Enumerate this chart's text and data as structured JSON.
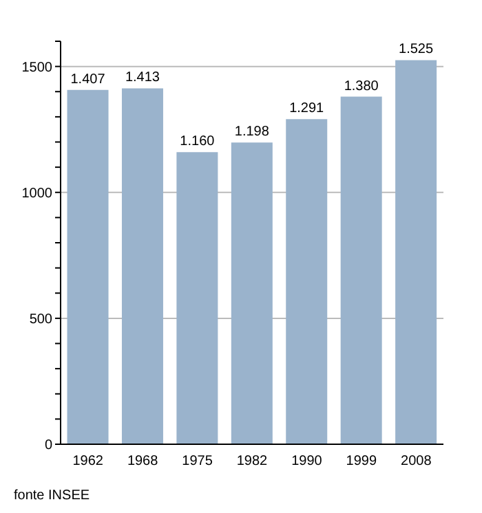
{
  "chart_data": {
    "type": "bar",
    "categories": [
      "1962",
      "1968",
      "1975",
      "1982",
      "1990",
      "1999",
      "2008"
    ],
    "values": [
      1407,
      1413,
      1160,
      1198,
      1291,
      1380,
      1525
    ],
    "value_labels": [
      "1.407",
      "1.413",
      "1.160",
      "1.198",
      "1.291",
      "1.380",
      "1.525"
    ],
    "color": "#9ab3cc",
    "ylim": [
      0,
      1600
    ],
    "yticks": [
      0,
      {
        "value": 100,
        "label": null
      },
      {
        "value": 200,
        "label": null
      },
      {
        "value": 300,
        "label": null
      },
      {
        "value": 400,
        "label": null
      },
      500,
      {
        "value": 600,
        "label": null
      },
      {
        "value": 700,
        "label": null
      },
      {
        "value": 800,
        "label": null
      },
      {
        "value": 900,
        "label": null
      },
      1000,
      {
        "value": 1100,
        "label": null
      },
      {
        "value": 1200,
        "label": null
      },
      {
        "value": 1300,
        "label": null
      },
      {
        "value": 1400,
        "label": null
      },
      1500,
      {
        "value": 1600,
        "label": null
      }
    ],
    "grid": "y",
    "annotations": [
      "fonte INSEE"
    ]
  }
}
